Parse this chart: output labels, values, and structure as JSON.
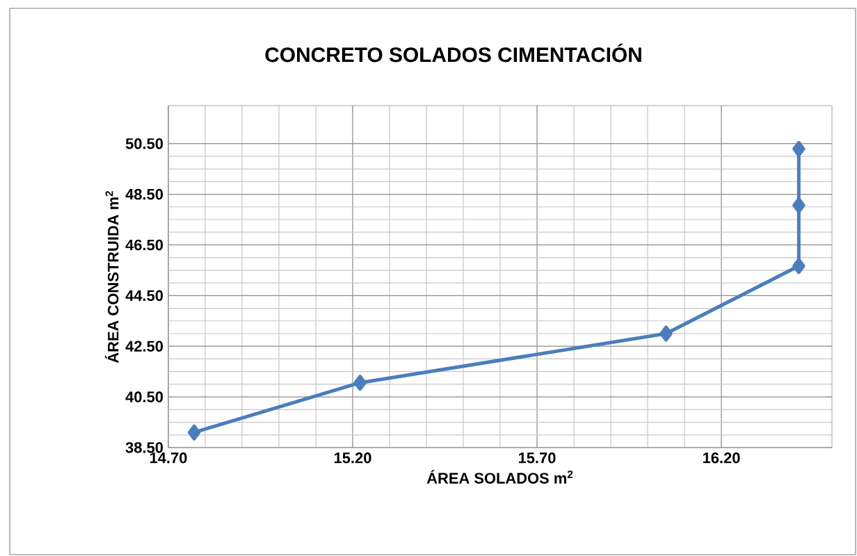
{
  "chart_data": {
    "type": "line",
    "title": "CONCRETO   SOLADOS  CIMENTACIÓN",
    "xlabel": "ÁREA SOLADOS  m$^{2}$",
    "ylabel": "ÁREA CONSTRUIDA  m$^{2}$",
    "x": [
      14.77,
      15.22,
      16.05,
      16.41,
      16.41,
      16.41
    ],
    "series": [
      {
        "color": "#4a7ebb",
        "values": [
          39.1,
          41.06,
          43.0,
          45.67,
          48.06,
          50.29
        ]
      }
    ],
    "xlim": [
      14.7,
      16.5
    ],
    "ylim": [
      38.5,
      52.0
    ],
    "xticks": [
      {
        "value": 14.7,
        "label": "14.70"
      },
      {
        "value": 15.2,
        "label": "15.20"
      },
      {
        "value": 15.7,
        "label": "15.70"
      },
      {
        "value": 16.2,
        "label": "16.20"
      }
    ],
    "yticks": [
      {
        "value": 38.5,
        "label": "38.50"
      },
      {
        "value": 40.5,
        "label": "40.50"
      },
      {
        "value": 42.5,
        "label": "42.50"
      },
      {
        "value": 44.5,
        "label": "44.50"
      },
      {
        "value": 46.5,
        "label": "46.50"
      },
      {
        "value": 48.5,
        "label": "48.50"
      },
      {
        "value": 50.5,
        "label": "50.50"
      }
    ],
    "grid": true,
    "marker": "diamond",
    "line_style": "solid"
  }
}
